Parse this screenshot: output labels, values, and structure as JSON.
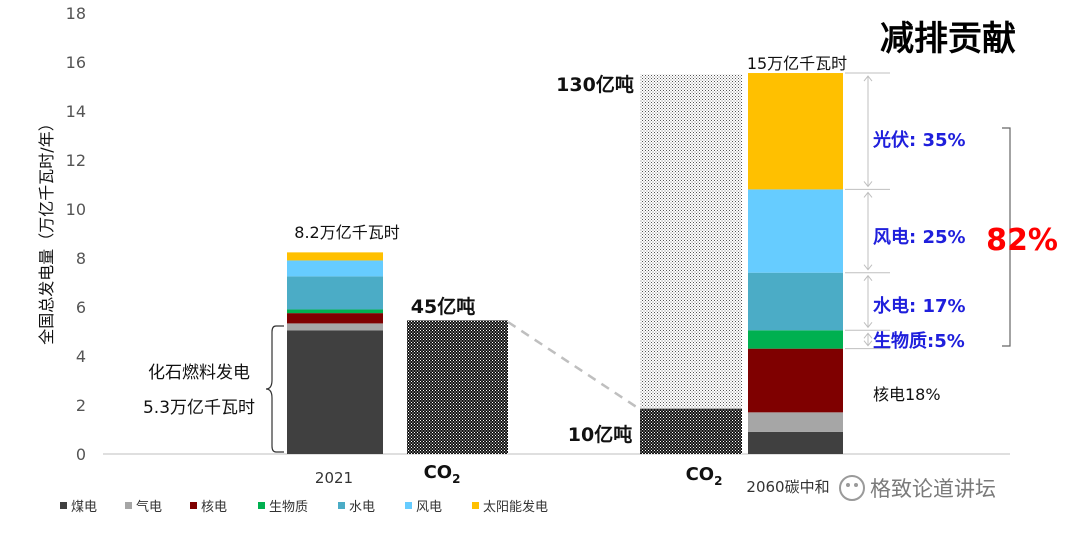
{
  "chart_data": {
    "type": "bar",
    "title": "减排贡献",
    "ylabel": "全国总发电量（万亿千瓦时/年）",
    "ylim": [
      0,
      18
    ],
    "yticks": [
      "0",
      "2",
      "4",
      "6",
      "8",
      "10",
      "12",
      "14",
      "16",
      "18"
    ],
    "categories": [
      "2021",
      "2060碳中和"
    ],
    "co2_label_main": "CO",
    "co2_label_sub": "2",
    "series": [
      {
        "name": "煤电",
        "color": "#404040",
        "values": [
          5.05,
          0.9
        ]
      },
      {
        "name": "气电",
        "color": "#a6a6a6",
        "values": [
          0.28,
          0.8
        ]
      },
      {
        "name": "核电",
        "color": "#7f0000",
        "values": [
          0.42,
          2.6
        ]
      },
      {
        "name": "生物质",
        "color": "#00b050",
        "values": [
          0.15,
          0.75
        ]
      },
      {
        "name": "水电",
        "color": "#4bacc6",
        "values": [
          1.35,
          2.35
        ]
      },
      {
        "name": "风电",
        "color": "#66ccff",
        "values": [
          0.65,
          3.4
        ]
      },
      {
        "name": "太阳能发电",
        "color": "#ffc000",
        "values": [
          0.33,
          4.75
        ]
      }
    ],
    "co2_bars": [
      {
        "value": 5.45,
        "label": "45亿吨"
      },
      {
        "value": 15.5,
        "residual": 1.85,
        "top_label": "130亿吨",
        "residual_label": "10亿吨"
      }
    ],
    "annotations": {
      "total_2021": "8.2万亿千瓦时",
      "total_2060": "15万亿千瓦时",
      "fossil_line1": "化石燃料发电",
      "fossil_line2": "5.3万亿千瓦时",
      "nuclear_2060": "核电18%",
      "solar_share": "光伏: 35%",
      "wind_share": "风电: 25%",
      "hydro_share": "水电: 17%",
      "bio_share": "生物质:5%",
      "renewable_total": "82%"
    },
    "watermark": "格致论道讲坛"
  }
}
